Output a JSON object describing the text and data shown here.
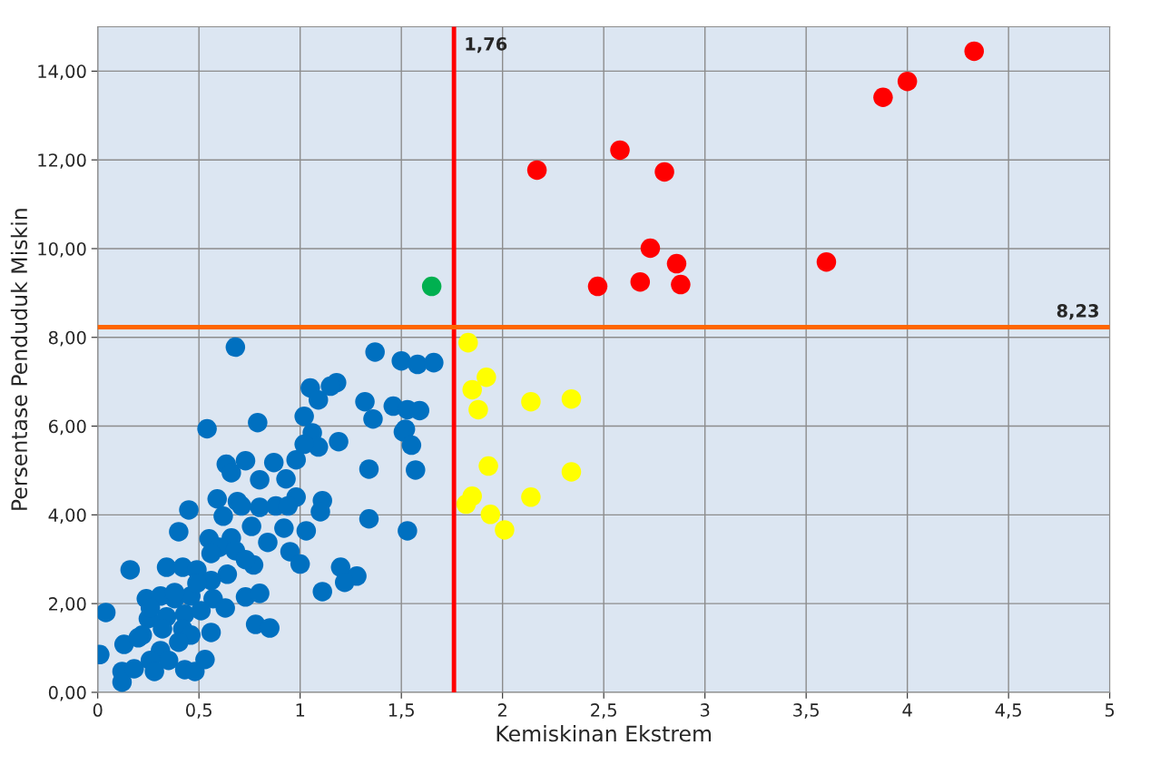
{
  "chart_data": {
    "type": "scatter",
    "xlabel": "Kemiskinan Ekstrem",
    "ylabel": "Persentase Penduduk Miskin",
    "xlim": [
      0,
      5
    ],
    "xticks": [
      0,
      {
        "value": 0.5,
        "label": "0,5"
      },
      1,
      {
        "value": 1.5,
        "label": "1,5"
      },
      2,
      {
        "value": 2.5,
        "label": "2,5"
      },
      3,
      {
        "value": 3.5,
        "label": "3,5"
      },
      4,
      {
        "value": 4.5,
        "label": "4,5"
      },
      5
    ],
    "ylim": [
      0,
      15
    ],
    "yticks": [
      {
        "value": 0,
        "label": "0,00"
      },
      {
        "value": 2,
        "label": "2,00"
      },
      {
        "value": 4,
        "label": "4,00"
      },
      {
        "value": 6,
        "label": "6,00"
      },
      {
        "value": 8,
        "label": "8,00"
      },
      {
        "value": 10,
        "label": "10,00"
      },
      {
        "value": 12,
        "label": "12,00"
      },
      {
        "value": 14,
        "label": "14,00"
      }
    ],
    "grid": true,
    "marker": "circle",
    "ref_lines": [
      {
        "axis": "x",
        "value": 1.76,
        "label": "1,76",
        "color": "#ff0000"
      },
      {
        "axis": "y",
        "value": 8.23,
        "label": "8,23",
        "color": "#ff6600"
      }
    ],
    "series": [
      {
        "color": "#0070c0",
        "x": [
          0.68,
          1.37,
          1.5,
          1.58,
          1.66,
          1.18,
          1.15,
          1.05,
          1.09,
          1.32,
          1.36,
          1.46,
          1.53,
          1.59,
          1.02,
          0.79,
          0.54,
          1.52,
          1.51,
          1.55,
          1.06,
          1.09,
          1.19,
          0.98,
          1.02,
          0.635,
          0.73,
          0.66,
          0.87,
          0.8,
          0.93,
          1.34,
          1.57,
          0.98,
          1.11,
          1.1,
          1.34,
          0.59,
          0.69,
          0.71,
          0.8,
          0.88,
          0.94,
          0.62,
          0.45,
          1.53,
          0.4,
          0.76,
          0.84,
          0.92,
          1.03,
          0.95,
          1.0,
          0.55,
          0.66,
          0.6,
          0.56,
          0.68,
          0.77,
          0.73,
          0.64,
          0.16,
          0.34,
          0.42,
          0.49,
          0.56,
          0.73,
          0.8,
          1.11,
          1.2,
          1.28,
          1.22,
          0.24,
          0.31,
          0.38,
          0.46,
          0.57,
          0.63,
          0.04,
          0.25,
          0.34,
          0.43,
          0.51,
          0.42,
          0.32,
          0.22,
          0.56,
          0.46,
          0.78,
          0.85,
          0.13,
          0.2,
          0.4,
          0.31,
          0.35,
          0.26,
          0.01,
          0.12,
          0.12,
          0.18,
          0.28,
          0.43,
          0.48,
          0.53,
          0.49,
          0.38,
          0.26
        ],
        "values": [
          7.78,
          7.67,
          7.47,
          7.39,
          7.43,
          6.98,
          6.9,
          6.86,
          6.59,
          6.55,
          6.16,
          6.45,
          6.37,
          6.35,
          6.22,
          6.08,
          5.94,
          5.93,
          5.87,
          5.57,
          5.85,
          5.53,
          5.65,
          5.24,
          5.59,
          5.14,
          5.22,
          4.95,
          5.18,
          4.79,
          4.81,
          5.03,
          5.01,
          4.4,
          4.32,
          4.07,
          3.91,
          4.36,
          4.3,
          4.2,
          4.17,
          4.2,
          4.2,
          3.97,
          4.11,
          3.64,
          3.62,
          3.74,
          3.38,
          3.7,
          3.64,
          3.17,
          2.89,
          3.46,
          3.48,
          3.27,
          3.13,
          3.19,
          2.87,
          2.99,
          2.66,
          2.76,
          2.82,
          2.82,
          2.76,
          2.52,
          2.15,
          2.23,
          2.27,
          2.82,
          2.62,
          2.48,
          2.11,
          2.17,
          2.11,
          2.17,
          2.11,
          1.9,
          1.8,
          1.66,
          1.7,
          1.76,
          1.84,
          1.43,
          1.43,
          1.29,
          1.35,
          1.29,
          1.53,
          1.45,
          1.08,
          1.23,
          1.13,
          0.94,
          0.72,
          0.72,
          0.85,
          0.47,
          0.23,
          0.53,
          0.47,
          0.51,
          0.47,
          0.74,
          2.46,
          2.25,
          1.9
        ]
      },
      {
        "color": "#ffff00",
        "x": [
          1.83,
          1.92,
          1.85,
          1.88,
          2.14,
          2.34,
          1.93,
          2.34,
          1.85,
          1.82,
          2.14,
          1.94,
          2.01
        ],
        "values": [
          7.88,
          7.1,
          6.82,
          6.37,
          6.55,
          6.61,
          5.1,
          4.97,
          4.42,
          4.24,
          4.4,
          4.01,
          3.66
        ]
      },
      {
        "color": "#00b050",
        "x": [
          1.65
        ],
        "values": [
          9.15
        ]
      },
      {
        "color": "#ff0000",
        "x": [
          4.33,
          4.0,
          3.88,
          2.58,
          2.17,
          2.8,
          2.73,
          2.86,
          3.6,
          2.47,
          2.68,
          2.88
        ],
        "values": [
          14.45,
          13.77,
          13.41,
          12.22,
          11.77,
          11.73,
          10.01,
          9.66,
          9.7,
          9.15,
          9.25,
          9.19
        ]
      }
    ]
  }
}
